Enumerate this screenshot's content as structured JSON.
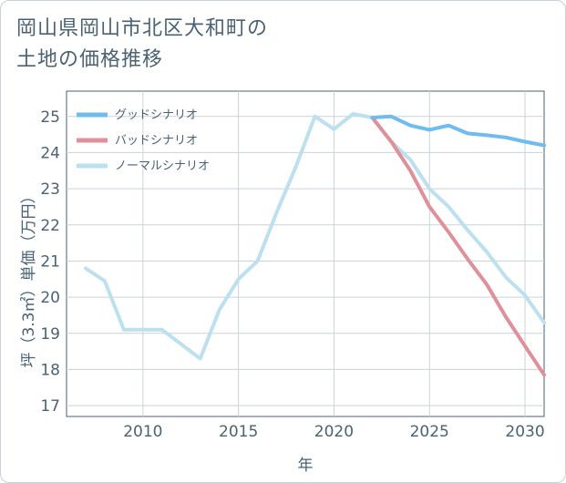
{
  "title_lines": [
    "岡山県岡山市北区大和町の",
    "土地の価格推移"
  ],
  "chart_data": {
    "type": "line",
    "title": "岡山県岡山市北区大和町の土地の価格推移",
    "xlabel": "年",
    "ylabel": "坪（3.3㎡）単価（万円）",
    "xlim": [
      2006,
      2031
    ],
    "ylim": [
      16.7,
      25.7
    ],
    "xticks": [
      2010,
      2015,
      2020,
      2025,
      2030
    ],
    "yticks": [
      17,
      18,
      19,
      20,
      21,
      22,
      23,
      24,
      25
    ],
    "grid": true,
    "legend_position": "top-left",
    "series": [
      {
        "name": "グッドシナリオ",
        "color": "#6fbcef",
        "x": [
          2022,
          2023,
          2024,
          2025,
          2026,
          2027,
          2028,
          2029,
          2030,
          2031
        ],
        "values": [
          24.97,
          25.0,
          24.75,
          24.63,
          24.75,
          24.53,
          24.48,
          24.42,
          24.3,
          24.2
        ]
      },
      {
        "name": "バッドシナリオ",
        "color": "#e0909a",
        "x": [
          2022,
          2023,
          2024,
          2025,
          2026,
          2027,
          2028,
          2029,
          2030,
          2031
        ],
        "values": [
          24.97,
          24.3,
          23.5,
          22.5,
          21.8,
          21.05,
          20.35,
          19.45,
          18.65,
          17.85
        ]
      },
      {
        "name": "ノーマルシナリオ",
        "color": "#bde0ef",
        "x": [
          2007,
          2008,
          2009,
          2010,
          2011,
          2012,
          2013,
          2014,
          2015,
          2016,
          2017,
          2018,
          2019,
          2020,
          2021,
          2022,
          2023,
          2024,
          2025,
          2026,
          2027,
          2028,
          2029,
          2030,
          2031
        ],
        "values": [
          20.8,
          20.45,
          19.1,
          19.1,
          19.1,
          18.7,
          18.3,
          19.65,
          20.5,
          21.0,
          22.35,
          23.6,
          25.0,
          24.65,
          25.07,
          24.97,
          24.3,
          23.8,
          23.0,
          22.5,
          21.85,
          21.25,
          20.55,
          20.05,
          19.3
        ]
      }
    ]
  }
}
